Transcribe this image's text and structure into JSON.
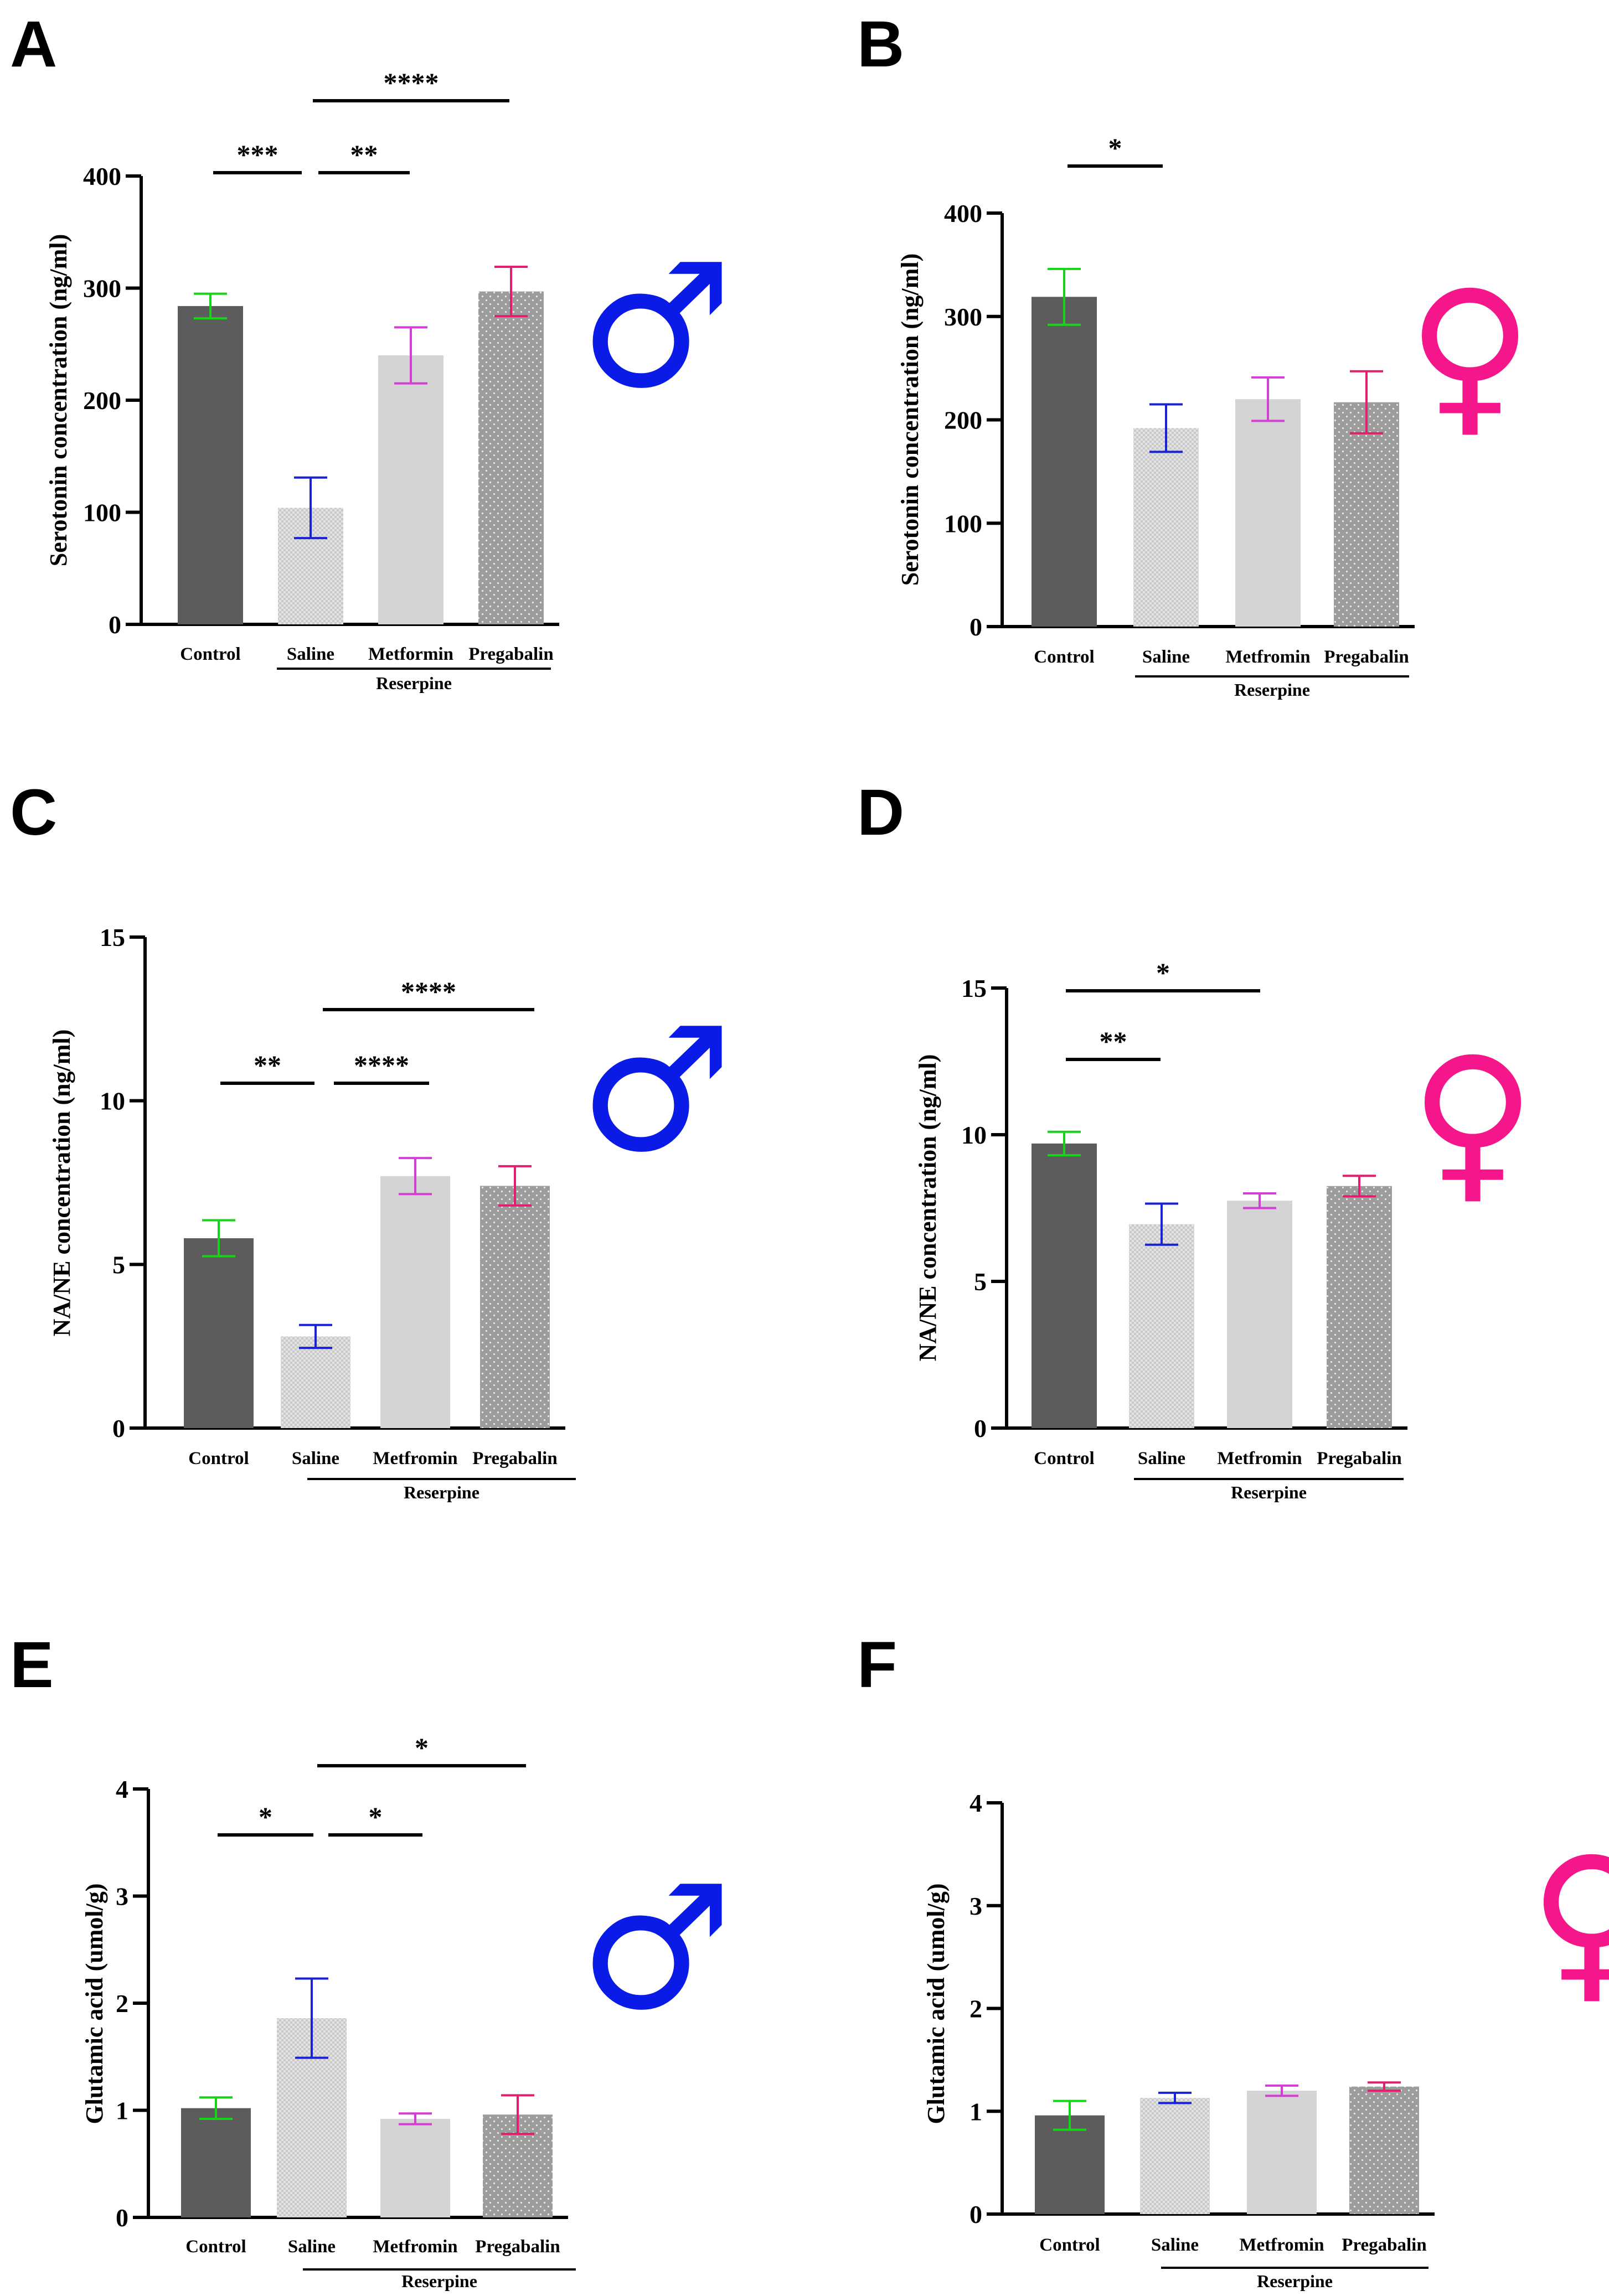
{
  "colors": {
    "control": "#5c5c5c",
    "saline": "#e2e2e2",
    "metformin": "#d4d4d4",
    "pregabalin": "#9c9c9c",
    "err_control": "#18d418",
    "err_saline": "#1a22d6",
    "err_metformin": "#d43ed4",
    "err_pregabalin": "#e0206e",
    "male_symbol": "#0a1be8",
    "female_symbol": "#f5168c"
  },
  "chart_data": [
    {
      "panel": "A",
      "type": "bar",
      "ylabel": "Serotonin concentration (ng/ml)",
      "ylim": [
        0,
        400
      ],
      "yticks": [
        0,
        100,
        200,
        300,
        400
      ],
      "categories": [
        "Control",
        "Saline",
        "Metformin",
        "Pregabalin"
      ],
      "values": [
        284,
        104,
        240,
        297
      ],
      "errors": [
        11,
        27,
        25,
        22
      ],
      "group_label": "Reserpine",
      "sex_symbol": "♂",
      "sex": "male",
      "significance": [
        {
          "from": 0,
          "to": 1,
          "text": "***"
        },
        {
          "from": 1,
          "to": 2,
          "text": "**"
        },
        {
          "from": 1,
          "to": 3,
          "text": "****"
        }
      ]
    },
    {
      "panel": "B",
      "type": "bar",
      "ylabel": "Serotonin concentration (ng/ml)",
      "ylim": [
        0,
        400
      ],
      "yticks": [
        0,
        100,
        200,
        300,
        400
      ],
      "categories": [
        "Control",
        "Saline",
        "Metfromin",
        "Pregabalin"
      ],
      "values": [
        319,
        192,
        220,
        217
      ],
      "errors": [
        27,
        23,
        21,
        30
      ],
      "group_label": "Reserpine",
      "sex_symbol": "♀",
      "sex": "female",
      "significance": [
        {
          "from": 0,
          "to": 1,
          "text": "*"
        }
      ]
    },
    {
      "panel": "C",
      "type": "bar",
      "ylabel": "NA/NE concentration (ng/ml)",
      "ylim": [
        0,
        15
      ],
      "yticks": [
        0,
        5,
        10,
        15
      ],
      "categories": [
        "Control",
        "Saline",
        "Metfromin",
        "Pregabalin"
      ],
      "values": [
        5.8,
        2.8,
        7.7,
        7.4
      ],
      "errors": [
        0.55,
        0.35,
        0.55,
        0.6
      ],
      "group_label": "Reserpine",
      "sex_symbol": "♂",
      "sex": "male",
      "significance": [
        {
          "from": 0,
          "to": 1,
          "text": "**"
        },
        {
          "from": 1,
          "to": 2,
          "text": "****"
        },
        {
          "from": 1,
          "to": 3,
          "text": "****"
        }
      ]
    },
    {
      "panel": "D",
      "type": "bar",
      "ylabel": "NA/NE concentration (ng/ml)",
      "ylim": [
        0,
        15
      ],
      "yticks": [
        0,
        5,
        10,
        15
      ],
      "categories": [
        "Control",
        "Saline",
        "Metfromin",
        "Pregabalin"
      ],
      "values": [
        9.7,
        6.95,
        7.75,
        8.25
      ],
      "errors": [
        0.4,
        0.7,
        0.25,
        0.35
      ],
      "group_label": "Reserpine",
      "sex_symbol": "♀",
      "sex": "female",
      "significance": [
        {
          "from": 0,
          "to": 1,
          "text": "**"
        },
        {
          "from": 0,
          "to": 2,
          "text": "*"
        }
      ]
    },
    {
      "panel": "E",
      "type": "bar",
      "ylabel": "Glutamic acid (umol/g)",
      "ylim": [
        0,
        4
      ],
      "yticks": [
        0,
        1,
        2,
        3,
        4
      ],
      "categories": [
        "Control",
        "Saline",
        "Metfromin",
        "Pregabalin"
      ],
      "values": [
        1.02,
        1.86,
        0.92,
        0.96
      ],
      "errors": [
        0.1,
        0.37,
        0.05,
        0.18
      ],
      "group_label": "Reserpine",
      "sex_symbol": "♂",
      "sex": "male",
      "significance": [
        {
          "from": 0,
          "to": 1,
          "text": "*"
        },
        {
          "from": 1,
          "to": 2,
          "text": "*"
        },
        {
          "from": 1,
          "to": 3,
          "text": "*"
        }
      ]
    },
    {
      "panel": "F",
      "type": "bar",
      "ylabel": "Glutamic acid (umol/g)",
      "ylim": [
        0,
        4
      ],
      "yticks": [
        0,
        1,
        2,
        3,
        4
      ],
      "categories": [
        "Control",
        "Saline",
        "Metfromin",
        "Pregabalin"
      ],
      "values": [
        0.96,
        1.13,
        1.2,
        1.24
      ],
      "errors": [
        0.14,
        0.05,
        0.05,
        0.04
      ],
      "group_label": "Reserpine",
      "sex_symbol": "♀",
      "sex": "female",
      "significance": []
    }
  ]
}
